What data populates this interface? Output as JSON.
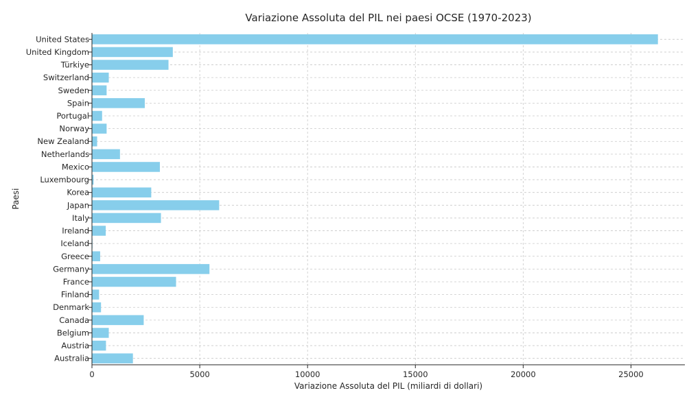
{
  "chart_data": {
    "type": "bar",
    "orientation": "horizontal",
    "title": "Variazione Assoluta del PIL nei paesi OCSE (1970-2023)",
    "xlabel": "Variazione Assoluta del PIL (miliardi di dollari)",
    "ylabel": "Paesi",
    "xlim": [
      0,
      27500
    ],
    "xticks": [
      0,
      5000,
      10000,
      15000,
      20000,
      25000
    ],
    "grid": true,
    "bar_color": "#87CEEB",
    "categories": [
      "Australia",
      "Austria",
      "Belgium",
      "Canada",
      "Denmark",
      "Finland",
      "France",
      "Germany",
      "Greece",
      "Iceland",
      "Ireland",
      "Italy",
      "Japan",
      "Korea",
      "Luxembourg",
      "Mexico",
      "Netherlands",
      "New Zealand",
      "Norway",
      "Portugal",
      "Spain",
      "Sweden",
      "Switzerland",
      "Türkiye",
      "United Kingdom",
      "United States"
    ],
    "values": [
      1900,
      650,
      780,
      2400,
      420,
      330,
      3900,
      5450,
      380,
      25,
      640,
      3200,
      5900,
      2750,
      75,
      3150,
      1300,
      240,
      680,
      470,
      2450,
      680,
      780,
      3550,
      3750,
      26250
    ]
  }
}
